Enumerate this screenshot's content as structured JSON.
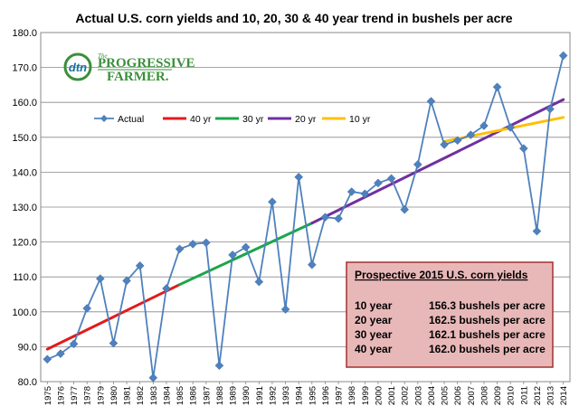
{
  "chart_data": {
    "type": "line",
    "title": "Actual U.S. corn yields and 10, 20, 30 & 40 year trend in bushels per acre",
    "ylim": [
      80,
      180
    ],
    "yticks": [
      "80.0",
      "90.0",
      "100.0",
      "110.0",
      "120.0",
      "130.0",
      "140.0",
      "150.0",
      "160.0",
      "170.0",
      "180.0"
    ],
    "x": [
      "1975",
      "1976",
      "1977",
      "1978",
      "1979",
      "1980",
      "1981",
      "1982",
      "1983",
      "1984",
      "1985",
      "1986",
      "1987",
      "1988",
      "1989",
      "1990",
      "1991",
      "1992",
      "1993",
      "1994",
      "1995",
      "1996",
      "1997",
      "1998",
      "1999",
      "2000",
      "2001",
      "2002",
      "2003",
      "2004",
      "2005",
      "2006",
      "2007",
      "2008",
      "2009",
      "2010",
      "2011",
      "2012",
      "2013",
      "2014"
    ],
    "grid": true,
    "legend": "top-left",
    "series": [
      {
        "name": "Actual",
        "color": "#4f81bd",
        "marker": "diamond",
        "values": [
          86.4,
          88.0,
          90.8,
          101.0,
          109.5,
          91.0,
          108.9,
          113.2,
          81.1,
          106.7,
          118.0,
          119.4,
          119.8,
          84.6,
          116.3,
          118.5,
          108.6,
          131.5,
          100.7,
          138.6,
          113.5,
          127.1,
          126.7,
          134.4,
          133.8,
          136.9,
          138.2,
          129.3,
          142.2,
          160.3,
          147.9,
          149.1,
          150.7,
          153.3,
          164.4,
          152.8,
          146.8,
          123.1,
          158.1,
          173.4
        ]
      },
      {
        "name": "40 yr",
        "color": "#e31a1c",
        "x_range": [
          "1975",
          "1985"
        ],
        "y_range": [
          89.3,
          107.8
        ]
      },
      {
        "name": "30 yr",
        "color": "#1aa64a",
        "x_range": [
          "1985",
          "1995"
        ],
        "y_range": [
          107.8,
          125.4
        ]
      },
      {
        "name": "20 yr",
        "color": "#7030a0",
        "x_range": [
          "1995",
          "2014"
        ],
        "y_range": [
          125.4,
          160.8
        ]
      },
      {
        "name": "10 yr",
        "color": "#ffc000",
        "x_range": [
          "2005",
          "2014"
        ],
        "y_range": [
          148.8,
          155.7
        ]
      }
    ],
    "annotation": {
      "title": "Prospective 2015 U.S. corn yields",
      "rows": [
        {
          "label": "10 year",
          "value": "156.3 bushels per acre"
        },
        {
          "label": "20 year",
          "value": "162.5 bushels per acre"
        },
        {
          "label": "30 year",
          "value": "162.1 bushels per acre"
        },
        {
          "label": "40 year",
          "value": "162.0 bushels per acre"
        }
      ]
    },
    "logo": {
      "mark": "dtn",
      "small": "The",
      "line1": "PROGRESSIVE",
      "line2": "FARMER."
    }
  }
}
